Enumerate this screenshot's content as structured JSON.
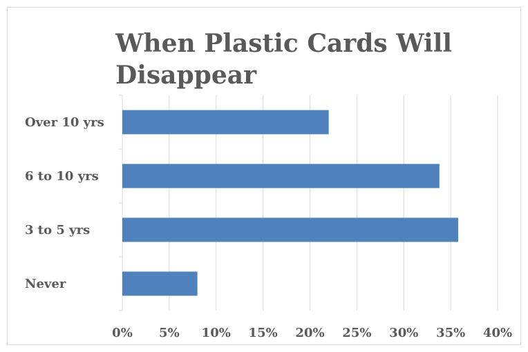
{
  "chart_data": {
    "type": "bar",
    "orientation": "horizontal",
    "title": "When Plastic Cards Will Disappear",
    "categories": [
      "Over 10 yrs",
      "6 to 10 yrs",
      "3 to 5 yrs",
      "Never"
    ],
    "values": [
      22,
      33.8,
      35.8,
      8
    ],
    "value_unit": "%",
    "xlim": [
      0,
      40
    ],
    "x_ticks": [
      "0%",
      "5%",
      "10%",
      "15%",
      "20%",
      "25%",
      "30%",
      "35%",
      "40%"
    ],
    "grid": "vertical",
    "legend": "none",
    "bar_color": "#4f81bd",
    "grid_color": "#d9d9d9",
    "text_color": "#595959"
  }
}
